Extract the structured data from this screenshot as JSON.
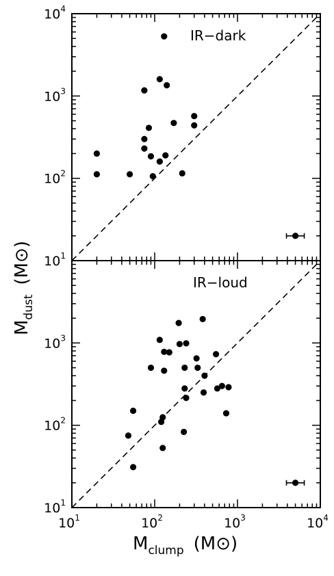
{
  "chart_data": [
    {
      "type": "scatter",
      "name": "top",
      "title": "IR−dark",
      "xscale": "log",
      "yscale": "log",
      "xlim": [
        10,
        10000
      ],
      "ylim": [
        10,
        10000
      ],
      "y_tick_labels": [
        {
          "base": "10",
          "exp": "1"
        },
        {
          "base": "10",
          "exp": "2"
        },
        {
          "base": "10",
          "exp": "3"
        },
        {
          "base": "10",
          "exp": "4"
        }
      ],
      "reference_line": {
        "style": "dashed",
        "relation": "y = x"
      },
      "error_bar_sample": {
        "x": 5000,
        "y": 20,
        "x_low": 3900,
        "x_high": 6400
      },
      "points": [
        {
          "x": 130,
          "y": 5300
        },
        {
          "x": 115,
          "y": 1600
        },
        {
          "x": 140,
          "y": 1350
        },
        {
          "x": 75,
          "y": 1170
        },
        {
          "x": 300,
          "y": 570
        },
        {
          "x": 170,
          "y": 470
        },
        {
          "x": 300,
          "y": 440
        },
        {
          "x": 85,
          "y": 410
        },
        {
          "x": 75,
          "y": 300
        },
        {
          "x": 75,
          "y": 230
        },
        {
          "x": 20,
          "y": 200
        },
        {
          "x": 135,
          "y": 190
        },
        {
          "x": 90,
          "y": 185
        },
        {
          "x": 115,
          "y": 160
        },
        {
          "x": 20,
          "y": 112
        },
        {
          "x": 50,
          "y": 112
        },
        {
          "x": 215,
          "y": 115
        },
        {
          "x": 95,
          "y": 106
        }
      ]
    },
    {
      "type": "scatter",
      "name": "bottom",
      "title": "IR−loud",
      "xscale": "log",
      "yscale": "log",
      "xlim": [
        10,
        10000
      ],
      "ylim": [
        10,
        10000
      ],
      "x_tick_labels": [
        {
          "base": "10",
          "exp": "1"
        },
        {
          "base": "10",
          "exp": "2"
        },
        {
          "base": "10",
          "exp": "3"
        },
        {
          "base": "10",
          "exp": "4"
        }
      ],
      "y_tick_labels": [
        {
          "base": "10",
          "exp": "1"
        },
        {
          "base": "10",
          "exp": "2"
        },
        {
          "base": "10",
          "exp": "3"
        }
      ],
      "reference_line": {
        "style": "dashed",
        "relation": "y = x"
      },
      "error_bar_sample": {
        "x": 5000,
        "y": 20,
        "x_low": 3900,
        "x_high": 6400
      },
      "points": [
        {
          "x": 380,
          "y": 1950
        },
        {
          "x": 195,
          "y": 1750
        },
        {
          "x": 115,
          "y": 1090
        },
        {
          "x": 240,
          "y": 990
        },
        {
          "x": 200,
          "y": 970
        },
        {
          "x": 130,
          "y": 780
        },
        {
          "x": 150,
          "y": 770
        },
        {
          "x": 550,
          "y": 730
        },
        {
          "x": 320,
          "y": 650
        },
        {
          "x": 90,
          "y": 500
        },
        {
          "x": 230,
          "y": 500
        },
        {
          "x": 330,
          "y": 500
        },
        {
          "x": 130,
          "y": 460
        },
        {
          "x": 400,
          "y": 400
        },
        {
          "x": 650,
          "y": 300
        },
        {
          "x": 780,
          "y": 290
        },
        {
          "x": 570,
          "y": 280
        },
        {
          "x": 230,
          "y": 280
        },
        {
          "x": 390,
          "y": 250
        },
        {
          "x": 240,
          "y": 215
        },
        {
          "x": 55,
          "y": 150
        },
        {
          "x": 730,
          "y": 140
        },
        {
          "x": 125,
          "y": 125
        },
        {
          "x": 120,
          "y": 110
        },
        {
          "x": 225,
          "y": 83
        },
        {
          "x": 48,
          "y": 75
        },
        {
          "x": 125,
          "y": 53
        },
        {
          "x": 55,
          "y": 31
        }
      ]
    }
  ],
  "labels": {
    "x_main": "M",
    "x_sub": "clump",
    "x_units": "(M⊙)",
    "y_main": "M",
    "y_sub": "dust",
    "y_units": "(M⊙)"
  }
}
